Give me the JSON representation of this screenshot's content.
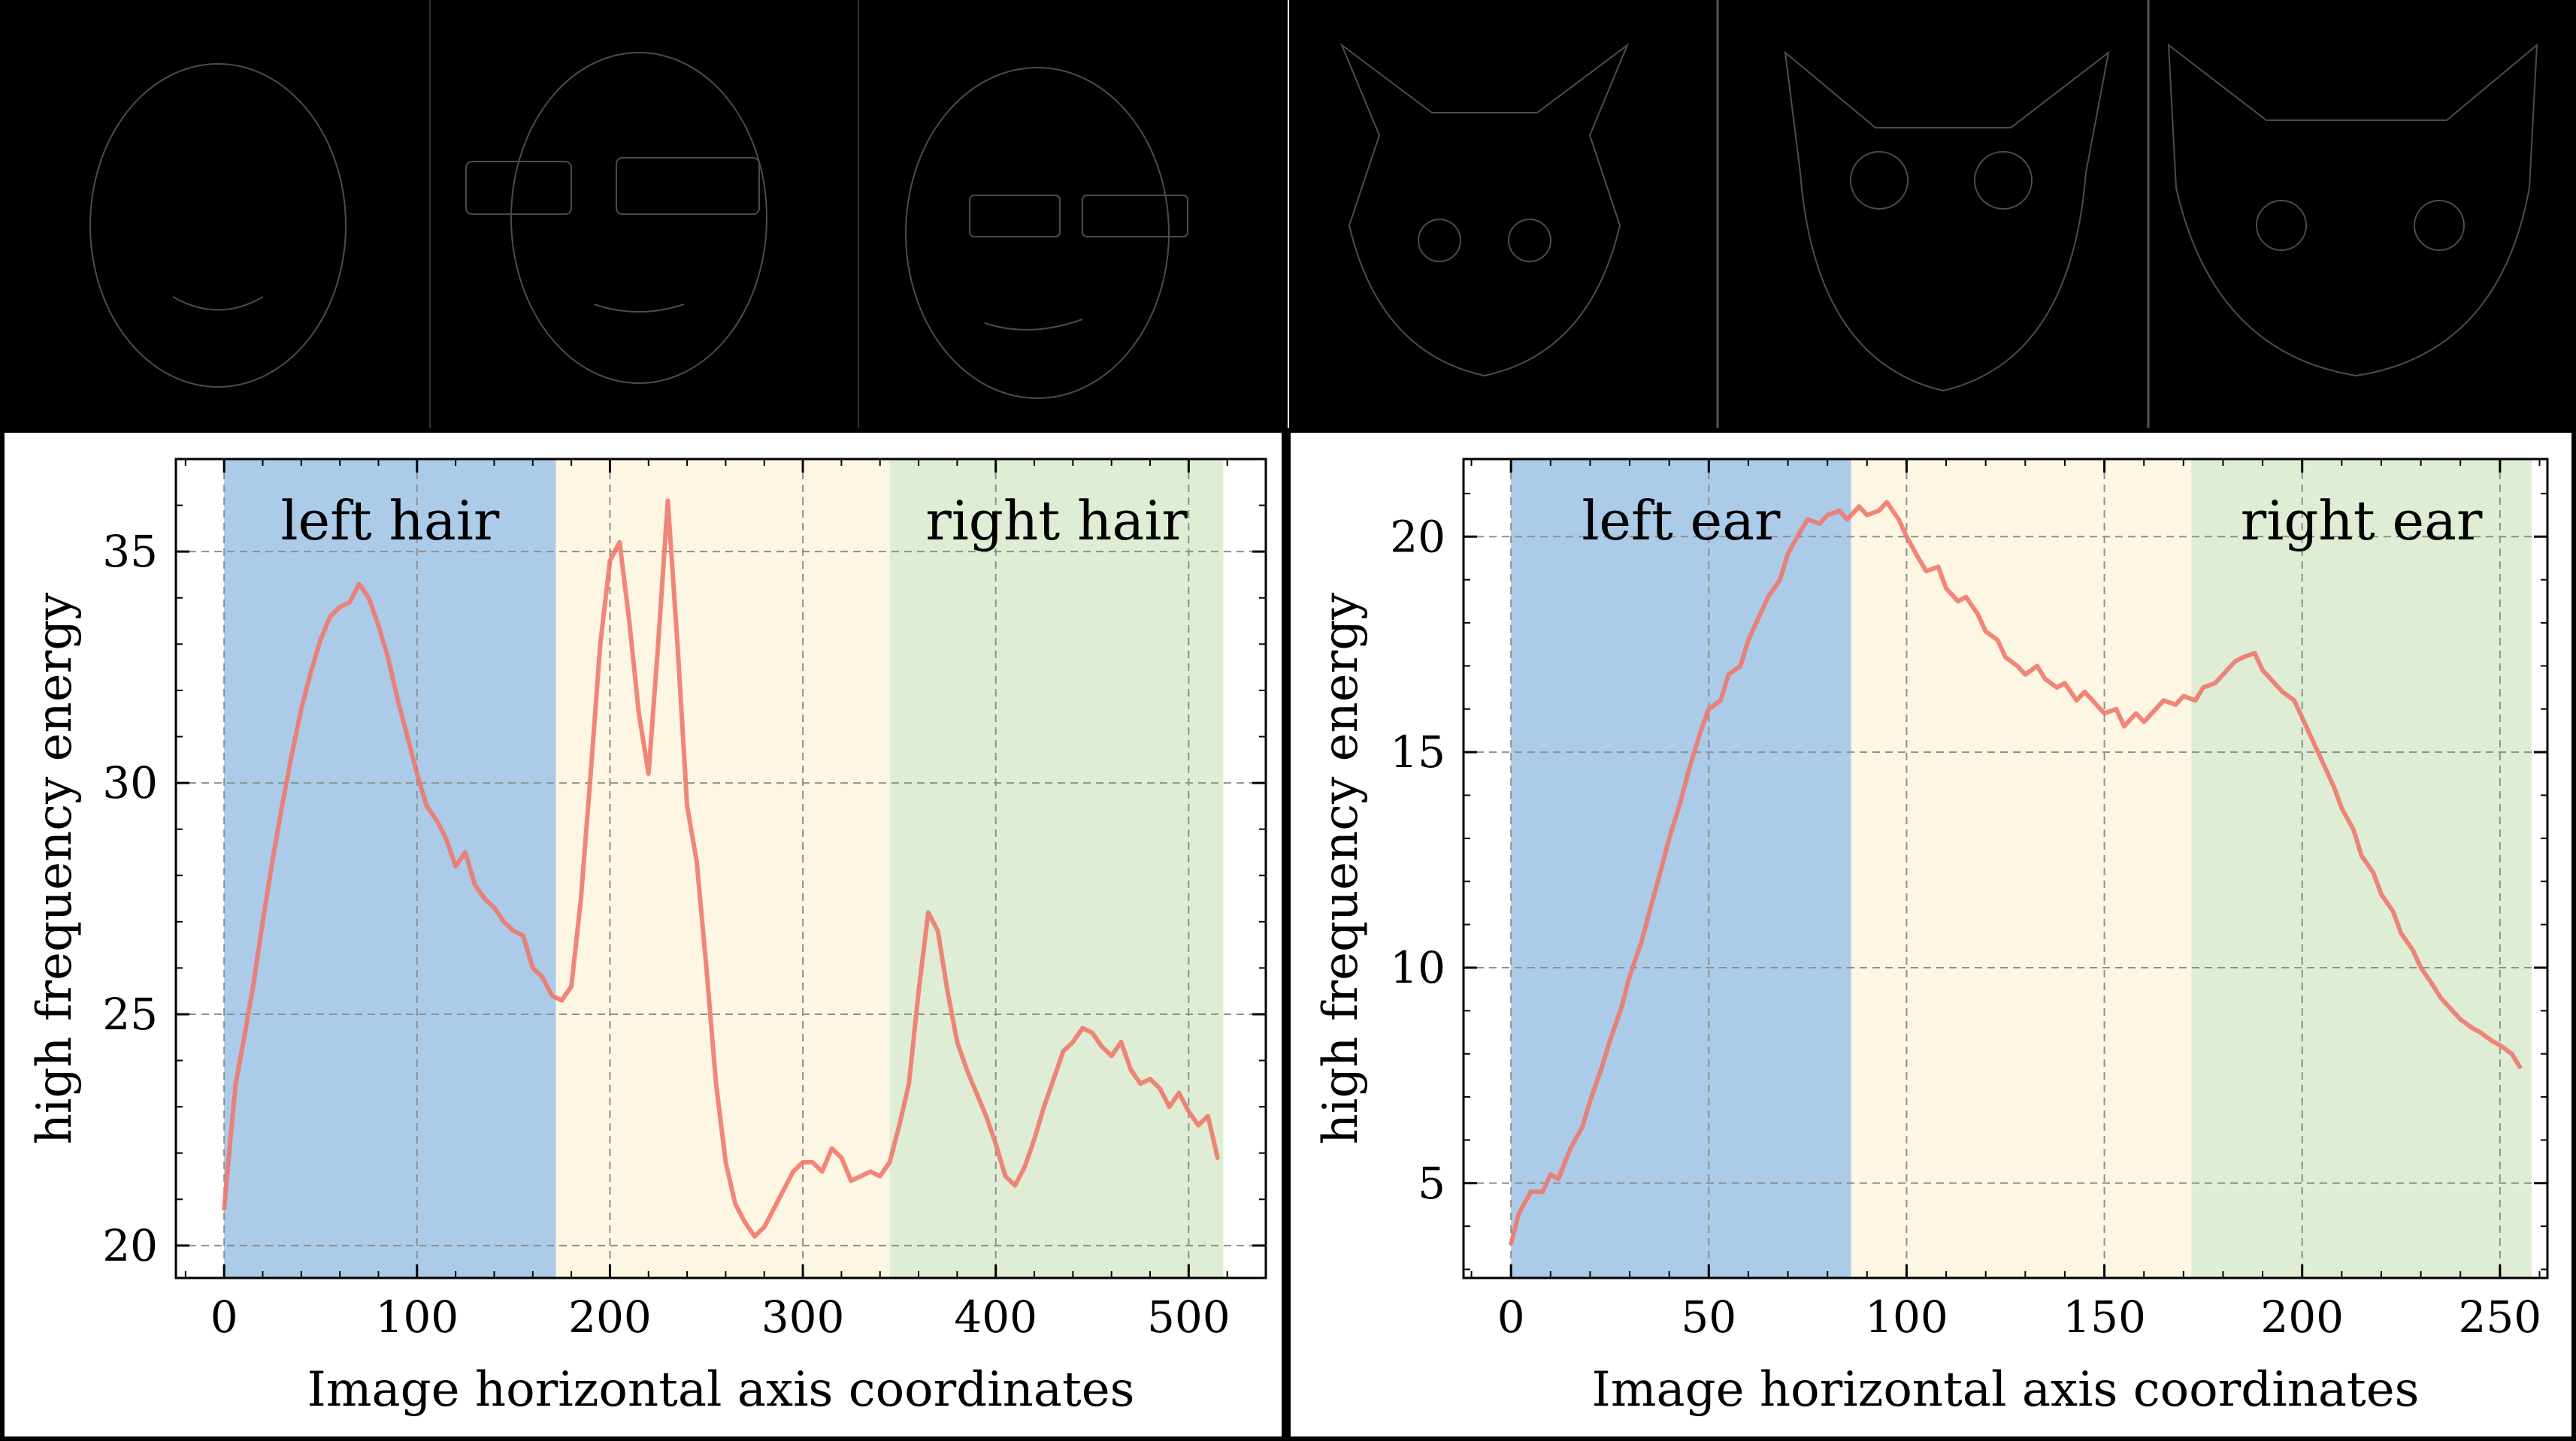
{
  "images": {
    "left_strip": {
      "subject": "faces",
      "count": 3,
      "style": "high-frequency edge maps, white on black"
    },
    "right_strip": {
      "subject": "cats",
      "count": 3,
      "style": "high-frequency edge maps, white on black"
    }
  },
  "colors": {
    "region_left": "#abcbe9",
    "region_middle": "#fdf6e3",
    "region_right": "#dfedd5",
    "line": "#ef7669",
    "frame": "#000000",
    "grid": "#8f8f8f"
  },
  "chart_data": [
    {
      "type": "line",
      "xlabel": "Image horizontal axis coordinates",
      "ylabel": "high frequency energy",
      "xlim": [
        -25,
        540
      ],
      "ylim": [
        19.3,
        37
      ],
      "xticks": [
        0,
        100,
        200,
        300,
        400,
        500
      ],
      "yticks": [
        20,
        25,
        30,
        35
      ],
      "grid": true,
      "regions": [
        {
          "label": "left hair",
          "x0": 0,
          "x1": 172,
          "color": "#abcbe9"
        },
        {
          "label": "",
          "x0": 172,
          "x1": 345,
          "color": "#fdf6e3"
        },
        {
          "label": "right hair",
          "x0": 345,
          "x1": 518,
          "color": "#dfedd5"
        }
      ],
      "series": [
        {
          "x": [
            0,
            3,
            6,
            10,
            15,
            20,
            25,
            30,
            35,
            40,
            45,
            50,
            55,
            60,
            65,
            70,
            75,
            80,
            85,
            90,
            95,
            100,
            105,
            110,
            115,
            120,
            125,
            130,
            135,
            140,
            145,
            150,
            155,
            160,
            165,
            170,
            175,
            180,
            185,
            190,
            195,
            200,
            205,
            210,
            215,
            220,
            225,
            230,
            235,
            240,
            245,
            250,
            255,
            260,
            265,
            270,
            275,
            280,
            285,
            290,
            295,
            300,
            305,
            310,
            315,
            320,
            325,
            330,
            335,
            340,
            345,
            350,
            355,
            360,
            365,
            370,
            375,
            380,
            385,
            390,
            395,
            400,
            405,
            410,
            415,
            420,
            425,
            430,
            435,
            440,
            445,
            450,
            455,
            460,
            465,
            470,
            475,
            480,
            485,
            490,
            495,
            500,
            505,
            510,
            515
          ],
          "y": [
            20.8,
            22.2,
            23.5,
            24.4,
            25.6,
            27.0,
            28.3,
            29.5,
            30.6,
            31.6,
            32.4,
            33.1,
            33.6,
            33.8,
            33.9,
            34.3,
            34.0,
            33.4,
            32.7,
            31.8,
            31.0,
            30.2,
            29.5,
            29.2,
            28.8,
            28.2,
            28.5,
            27.8,
            27.5,
            27.3,
            27.0,
            26.8,
            26.7,
            26.0,
            25.8,
            25.4,
            25.3,
            25.6,
            27.5,
            30.2,
            33.0,
            34.8,
            35.2,
            33.5,
            31.5,
            30.2,
            33.0,
            36.1,
            33.0,
            29.5,
            28.3,
            26.0,
            23.5,
            21.8,
            20.9,
            20.5,
            20.2,
            20.4,
            20.8,
            21.2,
            21.6,
            21.8,
            21.8,
            21.6,
            22.1,
            21.9,
            21.4,
            21.5,
            21.6,
            21.5,
            21.8,
            22.6,
            23.5,
            25.5,
            27.2,
            26.8,
            25.5,
            24.4,
            23.8,
            23.3,
            22.8,
            22.2,
            21.5,
            21.3,
            21.7,
            22.3,
            23.0,
            23.6,
            24.2,
            24.4,
            24.7,
            24.6,
            24.3,
            24.1,
            24.4,
            23.8,
            23.5,
            23.6,
            23.4,
            23.0,
            23.3,
            22.9,
            22.6,
            22.8,
            21.9
          ]
        }
      ]
    },
    {
      "type": "line",
      "xlabel": "Image horizontal axis coordinates",
      "ylabel": "high frequency energy",
      "xlim": [
        -12,
        262
      ],
      "ylim": [
        2.8,
        21.8
      ],
      "xticks": [
        0,
        50,
        100,
        150,
        200,
        250
      ],
      "yticks": [
        5,
        10,
        15,
        20
      ],
      "grid": true,
      "regions": [
        {
          "label": "left ear",
          "x0": 0,
          "x1": 86,
          "color": "#abcbe9"
        },
        {
          "label": "",
          "x0": 86,
          "x1": 172,
          "color": "#fdf6e3"
        },
        {
          "label": "right ear",
          "x0": 172,
          "x1": 258,
          "color": "#dfedd5"
        }
      ],
      "series": [
        {
          "x": [
            0,
            2,
            5,
            8,
            10,
            12,
            15,
            18,
            20,
            23,
            25,
            28,
            30,
            33,
            35,
            38,
            40,
            43,
            45,
            48,
            50,
            53,
            55,
            58,
            60,
            63,
            65,
            68,
            70,
            73,
            75,
            78,
            80,
            83,
            85,
            88,
            90,
            93,
            95,
            98,
            100,
            103,
            105,
            108,
            110,
            113,
            115,
            118,
            120,
            123,
            125,
            128,
            130,
            133,
            135,
            138,
            140,
            143,
            145,
            148,
            150,
            153,
            155,
            158,
            160,
            163,
            165,
            168,
            170,
            173,
            175,
            178,
            180,
            183,
            185,
            188,
            190,
            193,
            195,
            198,
            200,
            203,
            205,
            208,
            210,
            213,
            215,
            218,
            220,
            223,
            225,
            228,
            230,
            233,
            235,
            238,
            240,
            243,
            245,
            248,
            250,
            253,
            255
          ],
          "y": [
            3.6,
            4.3,
            4.8,
            4.8,
            5.2,
            5.1,
            5.8,
            6.3,
            6.9,
            7.7,
            8.3,
            9.1,
            9.8,
            10.6,
            11.3,
            12.3,
            13.0,
            13.9,
            14.6,
            15.5,
            16.0,
            16.2,
            16.8,
            17.0,
            17.6,
            18.2,
            18.6,
            19.0,
            19.6,
            20.1,
            20.4,
            20.3,
            20.5,
            20.6,
            20.4,
            20.7,
            20.5,
            20.6,
            20.8,
            20.4,
            20.0,
            19.5,
            19.2,
            19.3,
            18.8,
            18.5,
            18.6,
            18.2,
            17.8,
            17.6,
            17.2,
            17.0,
            16.8,
            17.0,
            16.7,
            16.5,
            16.6,
            16.2,
            16.4,
            16.1,
            15.9,
            16.0,
            15.6,
            15.9,
            15.7,
            16.0,
            16.2,
            16.1,
            16.3,
            16.2,
            16.5,
            16.6,
            16.8,
            17.1,
            17.2,
            17.3,
            16.9,
            16.6,
            16.4,
            16.2,
            15.8,
            15.2,
            14.8,
            14.2,
            13.7,
            13.2,
            12.6,
            12.2,
            11.7,
            11.3,
            10.8,
            10.4,
            10.0,
            9.6,
            9.3,
            9.0,
            8.8,
            8.6,
            8.5,
            8.3,
            8.2,
            8.0,
            7.7
          ]
        }
      ]
    }
  ]
}
